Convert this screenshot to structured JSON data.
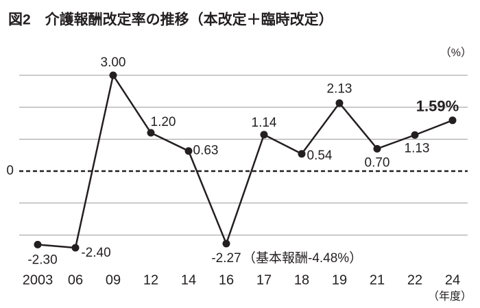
{
  "chart_data": {
    "type": "line",
    "title": "図2　介護報酬改定率の推移（本改定＋臨時改定）",
    "y_unit": "（%）",
    "x_unit": "（年度）",
    "annotation": "（基本報酬-4.48%）",
    "categories": [
      "2003",
      "06",
      "09",
      "12",
      "14",
      "16",
      "17",
      "18",
      "19",
      "21",
      "22",
      "24"
    ],
    "values": [
      -2.3,
      -2.4,
      3.0,
      1.2,
      0.63,
      -2.27,
      1.14,
      0.54,
      2.13,
      0.7,
      1.13,
      1.59
    ],
    "value_labels": [
      "-2.30",
      "-2.40",
      "3.00",
      "1.20",
      "0.63",
      "-2.27",
      "1.14",
      "0.54",
      "2.13",
      "0.70",
      "1.13",
      "1.59%"
    ],
    "color": "#231f20",
    "ylim": [
      -3,
      3.6
    ],
    "yticks": [
      0
    ],
    "gridlines": [
      -2,
      -1,
      1,
      2,
      3
    ],
    "grid": true
  }
}
